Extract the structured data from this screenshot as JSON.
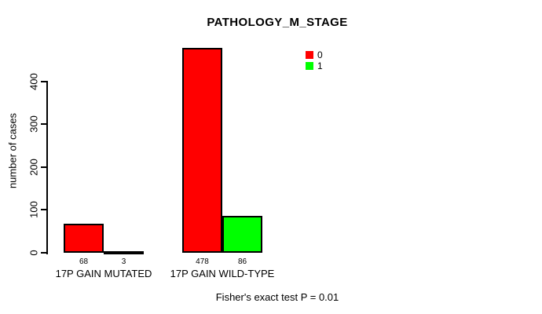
{
  "chart_data": {
    "type": "bar",
    "grouped": true,
    "title": "PATHOLOGY_M_STAGE",
    "ylabel": "number of cases",
    "xlabel": "",
    "ylim": [
      0,
      400
    ],
    "yticks": [
      0,
      100,
      200,
      300,
      400
    ],
    "categories": [
      "17P GAIN MUTATED",
      "17P GAIN WILD-TYPE"
    ],
    "series": [
      {
        "name": "0",
        "color": "#ff0000",
        "values": [
          68,
          478
        ]
      },
      {
        "name": "1",
        "color": "#00ff00",
        "values": [
          3,
          86
        ]
      }
    ],
    "bar_value_labels_shown": true,
    "legend": {
      "position": "top-right"
    },
    "grid": false,
    "annotation": "Fisher's exact test P = 0.01"
  }
}
